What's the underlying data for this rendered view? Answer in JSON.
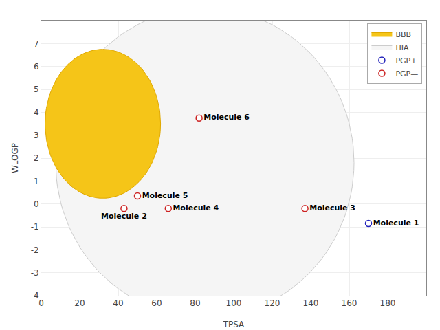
{
  "chart_data": {
    "type": "scatter",
    "xlabel": "TPSA",
    "ylabel": "WLOGP",
    "xlim": [
      0,
      200
    ],
    "ylim": [
      -4,
      8
    ],
    "xticks": [
      0,
      20,
      40,
      60,
      80,
      100,
      120,
      140,
      160,
      180
    ],
    "yticks": [
      -4,
      -3,
      -2,
      -1,
      0,
      1,
      2,
      3,
      4,
      5,
      6,
      7
    ],
    "grid": true,
    "legend": "upper right",
    "regions": [
      {
        "name": "HIA",
        "color": "#f5f5f5",
        "edge_color": "#cccccc",
        "cx": 85,
        "cy": 1.8,
        "width": 155,
        "height": 13.5
      },
      {
        "name": "BBB",
        "color": "#f5c518",
        "edge_color": "#e0a800",
        "cx": 32,
        "cy": 3.5,
        "width": 60,
        "height": 6.5
      }
    ],
    "series": [
      {
        "name": "PGP+",
        "color": "#2222bb",
        "marker": "open circle",
        "x": [
          170
        ],
        "y": [
          -0.85
        ],
        "labels": [
          "Molecule 1"
        ]
      },
      {
        "name": "PGP—",
        "color": "#cc2222",
        "marker": "open circle",
        "x": [
          50,
          43,
          66,
          137,
          82
        ],
        "y": [
          0.35,
          -0.2,
          -0.2,
          -0.2,
          3.75
        ],
        "labels": [
          "Molecule 5",
          "Molecule 2",
          "Molecule 4",
          "Molecule 3",
          "Molecule 6"
        ]
      }
    ]
  }
}
